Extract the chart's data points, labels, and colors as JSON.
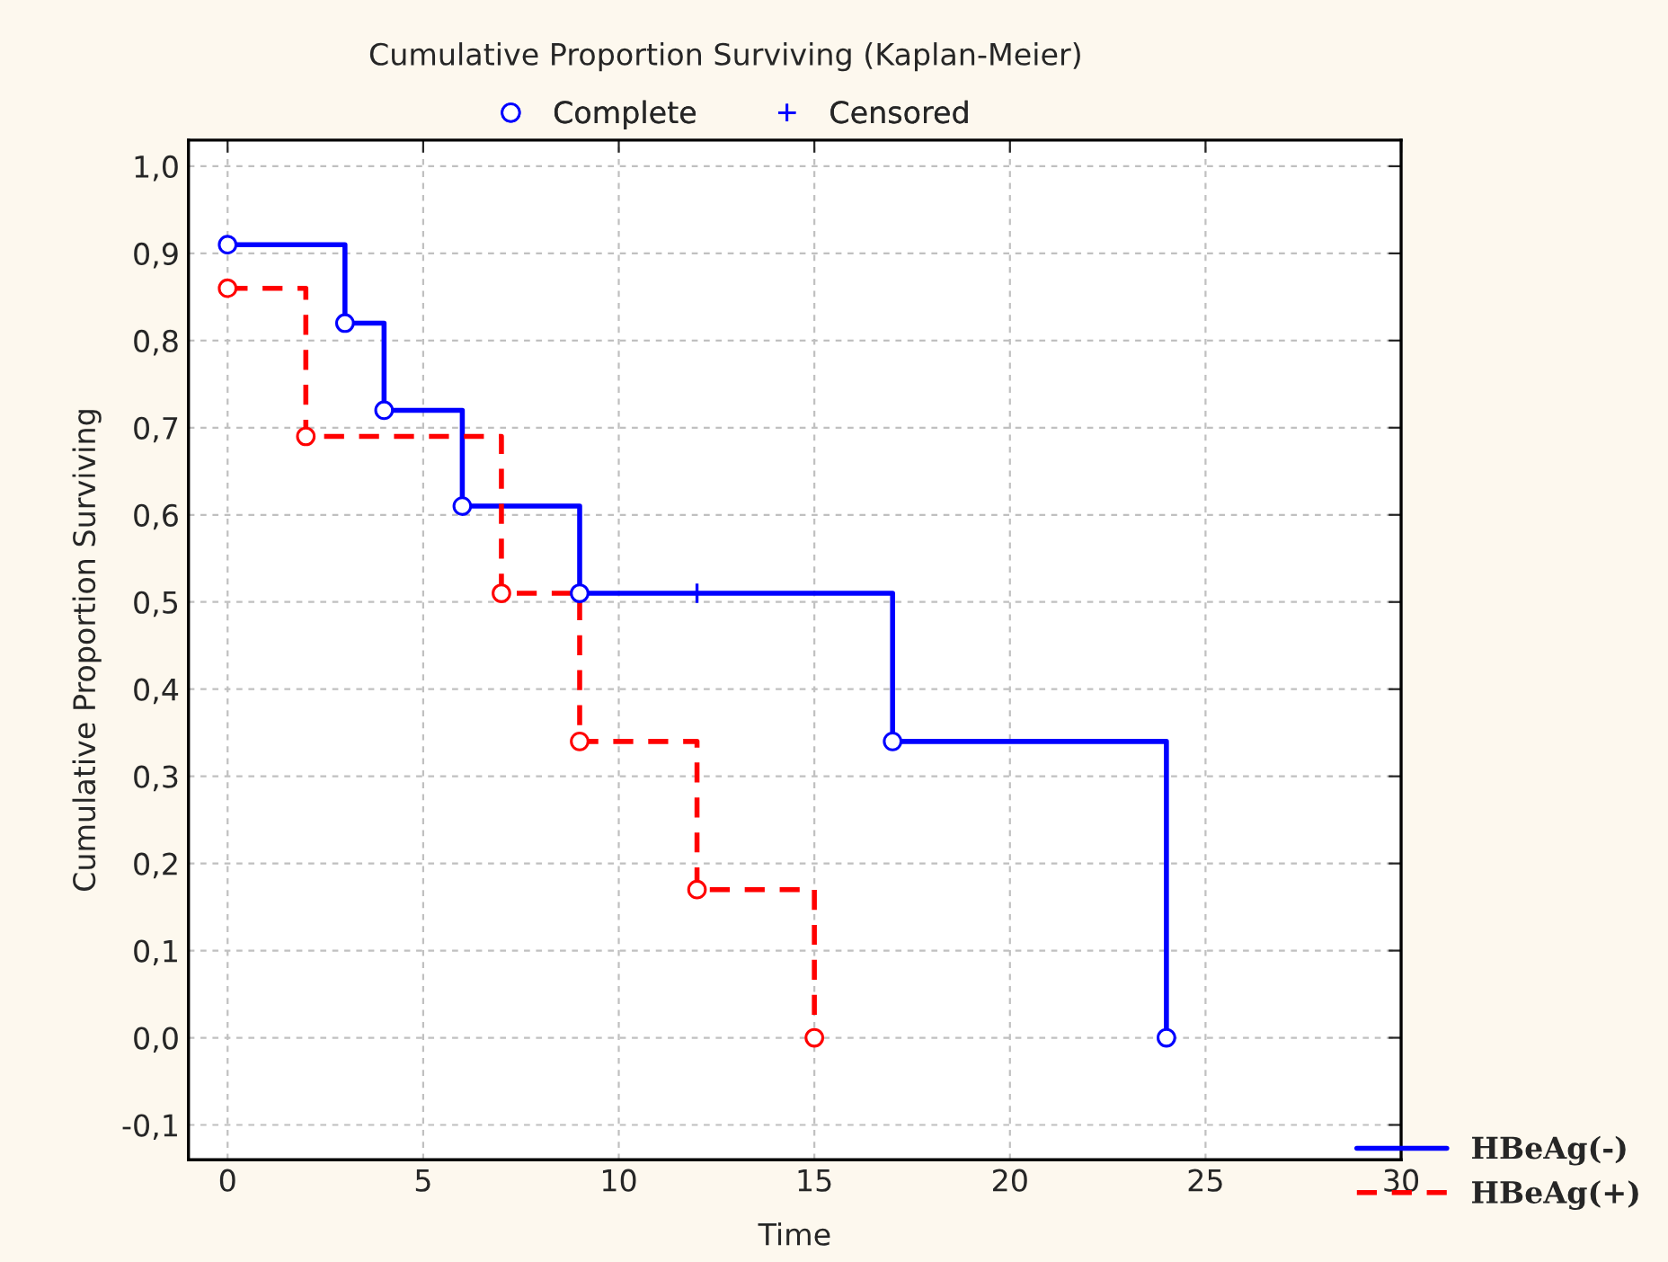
{
  "chart_data": {
    "type": "step",
    "title": "Cumulative Proportion Surviving (Kaplan-Meier)",
    "xlabel": "Time",
    "ylabel": "Cumulative Proportion Surviving",
    "xlim": [
      -1,
      30
    ],
    "xticks": [
      0,
      5,
      10,
      15,
      20,
      25,
      30
    ],
    "ylim": [
      -0.14,
      1.03
    ],
    "yticks": [
      {
        "value": -0.1,
        "label": "-0,1"
      },
      {
        "value": 0,
        "label": "0,0"
      },
      {
        "value": 0.1,
        "label": "0,1"
      },
      {
        "value": 0.2,
        "label": "0,2"
      },
      {
        "value": 0.3,
        "label": "0,3"
      },
      {
        "value": 0.4,
        "label": "0,4"
      },
      {
        "value": 0.5,
        "label": "0,5"
      },
      {
        "value": 0.6,
        "label": "0,6"
      },
      {
        "value": 0.7,
        "label": "0,7"
      },
      {
        "value": 0.8,
        "label": "0,8"
      },
      {
        "value": 0.9,
        "label": "0,9"
      },
      {
        "value": 1.0,
        "label": "1,0"
      }
    ],
    "grid": true,
    "legend": "bottom right",
    "series": [
      {
        "name": "HBeAg(-)",
        "color": "#0000ff",
        "line_style": "solid",
        "marker": "none",
        "x": [
          0,
          3,
          4,
          6,
          9,
          17,
          24
        ],
        "values": [
          0.91,
          0.82,
          0.72,
          0.61,
          0.51,
          0.34,
          0
        ]
      },
      {
        "name": "HBeAg(+)",
        "color": "#ff0000",
        "line_style": "dashed",
        "marker": "none",
        "x": [
          0,
          2,
          7,
          9,
          12,
          15
        ],
        "values": [
          0.86,
          0.69,
          0.51,
          0.34,
          0.17,
          0
        ]
      },
      {
        "name": "Complete",
        "type": "scatter",
        "color": "#0000ff",
        "marker": "circle",
        "x": [
          0,
          3,
          4,
          6,
          9,
          17,
          24,
          0,
          2,
          7,
          9,
          12,
          15
        ],
        "values": [
          0.91,
          0.82,
          0.72,
          0.61,
          0.51,
          0.34,
          0,
          0.86,
          0.69,
          0.51,
          0.34,
          0.17,
          0
        ],
        "colors": [
          "#0000ff",
          "#0000ff",
          "#0000ff",
          "#0000ff",
          "#0000ff",
          "#0000ff",
          "#0000ff",
          "#ff0000",
          "#ff0000",
          "#ff0000",
          "#ff0000",
          "#ff0000",
          "#ff0000"
        ]
      },
      {
        "name": "Censored",
        "type": "scatter",
        "color": "#0000ff",
        "marker": "cross",
        "x": [
          12
        ],
        "values": [
          0.51
        ]
      }
    ]
  }
}
